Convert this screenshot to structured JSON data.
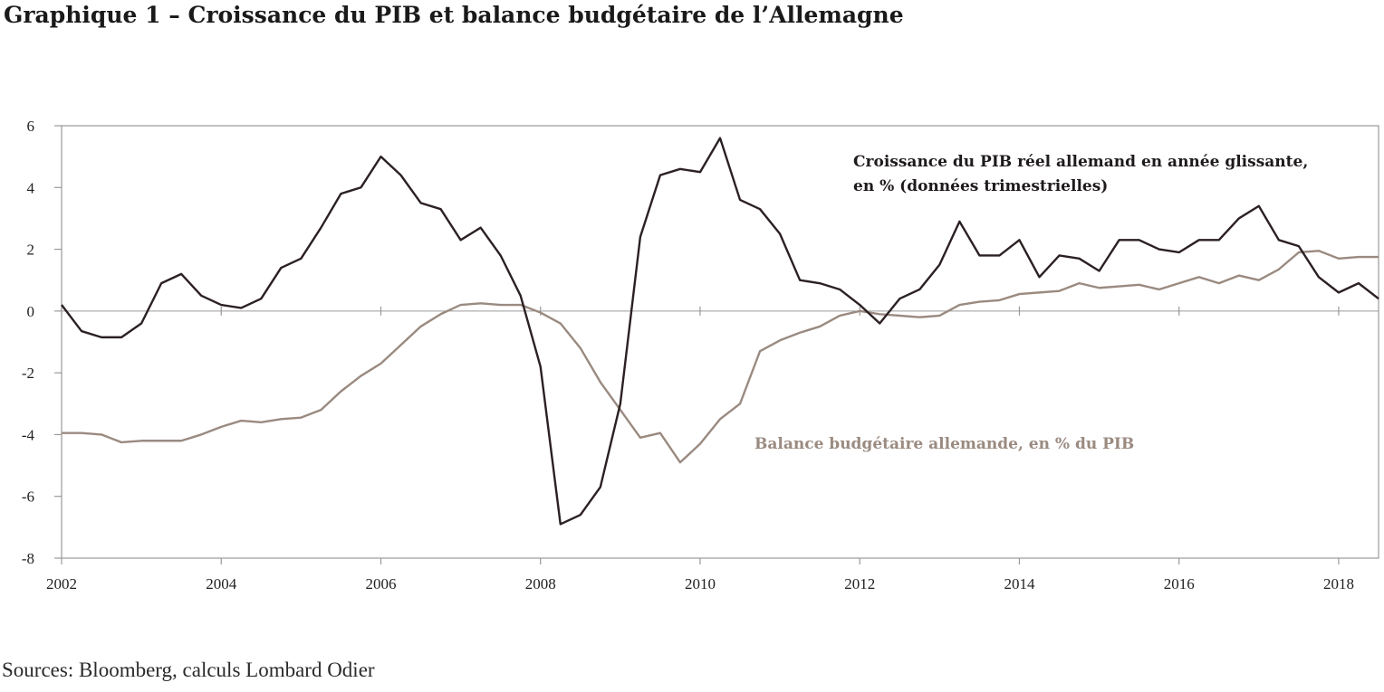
{
  "header": {
    "title": "Graphique 1 – Croissance du PIB et balance budgétaire de l’Allemagne"
  },
  "footer": {
    "source": "Sources: Bloomberg, calculs Lombard Odier"
  },
  "chart_data": {
    "type": "line",
    "title": "Graphique 1 – Croissance du PIB et balance budgétaire de l’Allemagne",
    "xlabel": "",
    "ylabel": "",
    "xlim": [
      2002,
      2018.5
    ],
    "ylim": [
      -8,
      6
    ],
    "x_ticks": [
      2002,
      2004,
      2006,
      2008,
      2010,
      2012,
      2014,
      2016,
      2018
    ],
    "x_tick_labels": [
      "2002",
      "2004",
      "2006",
      "2008",
      "2010",
      "2012",
      "2014",
      "2016",
      "2018"
    ],
    "y_ticks": [
      6,
      4,
      2,
      0,
      -2,
      -4,
      -6,
      -8
    ],
    "y_tick_labels": [
      "6",
      "4",
      "2",
      "0",
      "-2",
      "-4",
      "-6",
      "-8"
    ],
    "grid": false,
    "legend": "inline labels",
    "x": [
      2002.0,
      2002.25,
      2002.5,
      2002.75,
      2003.0,
      2003.25,
      2003.5,
      2003.75,
      2004.0,
      2004.25,
      2004.5,
      2004.75,
      2005.0,
      2005.25,
      2005.5,
      2005.75,
      2006.0,
      2006.25,
      2006.5,
      2006.75,
      2007.0,
      2007.25,
      2007.5,
      2007.75,
      2008.0,
      2008.25,
      2008.5,
      2008.75,
      2009.0,
      2009.25,
      2009.5,
      2009.75,
      2010.0,
      2010.25,
      2010.5,
      2010.75,
      2011.0,
      2011.25,
      2011.5,
      2011.75,
      2012.0,
      2012.25,
      2012.5,
      2012.75,
      2013.0,
      2013.25,
      2013.5,
      2013.75,
      2014.0,
      2014.25,
      2014.5,
      2014.75,
      2015.0,
      2015.25,
      2015.5,
      2015.75,
      2016.0,
      2016.25,
      2016.5,
      2016.75,
      2017.0,
      2017.25,
      2017.5,
      2017.75,
      2018.0,
      2018.25,
      2018.5
    ],
    "series": [
      {
        "name": "Croissance du PIB réel allemand en année glissante, en % (données trimestrielles)",
        "name_lines": [
          "Croissance du PIB réel allemand en année glissante,",
          "en % (données trimestrielles)"
        ],
        "color": "#2b2022",
        "values": [
          0.2,
          -0.65,
          -0.85,
          -0.85,
          -0.4,
          0.9,
          1.2,
          0.5,
          0.2,
          0.1,
          0.4,
          1.4,
          1.7,
          2.7,
          3.8,
          4.0,
          5.0,
          4.4,
          3.5,
          3.3,
          2.3,
          2.7,
          1.8,
          0.5,
          -1.8,
          -6.9,
          -6.6,
          -5.7,
          -3.0,
          2.4,
          4.4,
          4.6,
          4.5,
          5.6,
          3.6,
          3.3,
          2.5,
          1.0,
          0.9,
          0.7,
          0.2,
          -0.4,
          0.4,
          0.7,
          1.5,
          2.9,
          1.8,
          1.8,
          2.3,
          1.1,
          1.8,
          1.7,
          1.3,
          2.3,
          2.3,
          2.0,
          1.9,
          2.3,
          2.3,
          3.0,
          3.4,
          2.3,
          2.1,
          1.1,
          0.6,
          0.9,
          0.4
        ]
      },
      {
        "name": "Balance budgétaire allemande, en % du PIB",
        "name_lines": [
          "Balance budgétaire allemande, en % du PIB"
        ],
        "color": "#9a8a80",
        "values": [
          -3.95,
          -3.95,
          -4.0,
          -4.25,
          -4.2,
          -4.2,
          -4.2,
          -4.0,
          -3.75,
          -3.55,
          -3.6,
          -3.5,
          -3.45,
          -3.2,
          -2.6,
          -2.1,
          -1.7,
          -1.1,
          -0.5,
          -0.1,
          0.2,
          0.25,
          0.2,
          0.2,
          -0.05,
          -0.4,
          -1.2,
          -2.3,
          -3.2,
          -4.1,
          -3.95,
          -4.9,
          -4.3,
          -3.5,
          -3.0,
          -1.3,
          -0.95,
          -0.7,
          -0.5,
          -0.15,
          0.0,
          -0.1,
          -0.15,
          -0.2,
          -0.15,
          0.2,
          0.3,
          0.35,
          0.55,
          0.6,
          0.65,
          0.9,
          0.75,
          0.8,
          0.85,
          0.7,
          0.9,
          1.1,
          0.9,
          1.15,
          1.0,
          1.35,
          1.9,
          1.95,
          1.7,
          1.75,
          1.75
        ]
      }
    ]
  }
}
